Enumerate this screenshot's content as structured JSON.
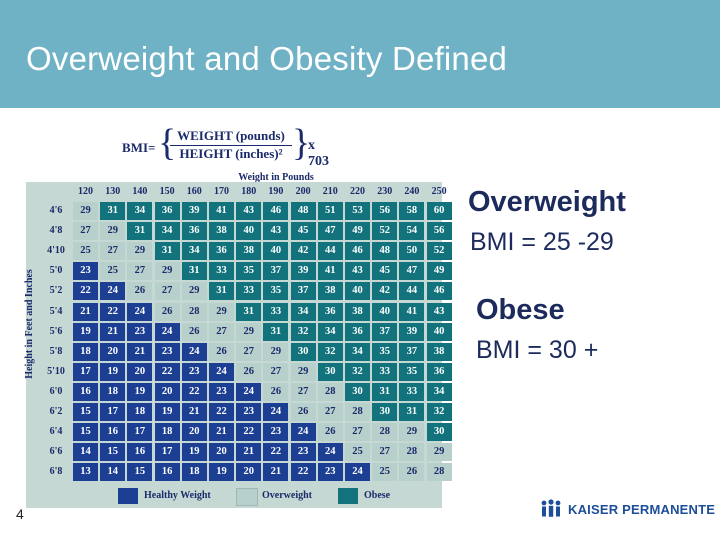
{
  "slide": {
    "title": "Overweight and Obesity Defined",
    "page_number": "4"
  },
  "figure": {
    "formula": {
      "label": "BMI=",
      "numerator": "WEIGHT (pounds)",
      "denominator": "HEIGHT (inches)²",
      "multiplier": "x 703"
    },
    "weight_axis_title": "Weight in Pounds",
    "height_axis_title": "Height in Feet and Inches",
    "weights": [
      "120",
      "130",
      "140",
      "150",
      "160",
      "170",
      "180",
      "190",
      "200",
      "210",
      "220",
      "230",
      "240",
      "250"
    ],
    "heights": [
      "4'6",
      "4'8",
      "4'10",
      "5'0",
      "5'2",
      "5'4",
      "5'6",
      "5'8",
      "5'10",
      "6'0",
      "6'2",
      "6'4",
      "6'6",
      "6'8"
    ],
    "rows": [
      [
        29,
        31,
        34,
        36,
        39,
        41,
        43,
        46,
        48,
        51,
        53,
        56,
        58,
        60
      ],
      [
        27,
        29,
        31,
        34,
        36,
        38,
        40,
        43,
        45,
        47,
        49,
        52,
        54,
        56
      ],
      [
        25,
        27,
        29,
        31,
        34,
        36,
        38,
        40,
        42,
        44,
        46,
        48,
        50,
        52
      ],
      [
        23,
        25,
        27,
        29,
        31,
        33,
        35,
        37,
        39,
        41,
        43,
        45,
        47,
        49
      ],
      [
        22,
        24,
        26,
        27,
        29,
        31,
        33,
        35,
        37,
        38,
        40,
        42,
        44,
        46
      ],
      [
        21,
        22,
        24,
        26,
        28,
        29,
        31,
        33,
        34,
        36,
        38,
        40,
        41,
        43
      ],
      [
        19,
        21,
        23,
        24,
        26,
        27,
        29,
        31,
        32,
        34,
        36,
        37,
        39,
        40
      ],
      [
        18,
        20,
        21,
        23,
        24,
        26,
        27,
        29,
        30,
        32,
        34,
        35,
        37,
        38
      ],
      [
        17,
        19,
        20,
        22,
        23,
        24,
        26,
        27,
        29,
        30,
        32,
        33,
        35,
        36
      ],
      [
        16,
        18,
        19,
        20,
        22,
        23,
        24,
        26,
        27,
        28,
        30,
        31,
        33,
        34
      ],
      [
        15,
        17,
        18,
        19,
        21,
        22,
        23,
        24,
        26,
        27,
        28,
        30,
        31,
        32
      ],
      [
        15,
        16,
        17,
        18,
        20,
        21,
        22,
        23,
        24,
        26,
        27,
        28,
        29,
        30
      ],
      [
        14,
        15,
        16,
        17,
        19,
        20,
        21,
        22,
        23,
        24,
        25,
        27,
        28,
        29
      ],
      [
        13,
        14,
        15,
        16,
        18,
        19,
        20,
        21,
        22,
        23,
        24,
        25,
        26,
        28
      ]
    ],
    "legend": {
      "healthy": "Healthy Weight",
      "overweight": "Overweight",
      "obese": "Obese"
    },
    "colors": {
      "healthy": "#1c3f94",
      "overweight": "#b8d0cb",
      "obese": "#12737d"
    },
    "thresholds": {
      "overweight_min": 25,
      "obese_min": 30
    }
  },
  "definitions": {
    "overweight_title": "Overweight",
    "overweight_value": "BMI = 25 -29",
    "obese_title": "Obese",
    "obese_value": "BMI = 30 +"
  },
  "branding": {
    "logo_text": "KAISER PERMANENTE",
    "logo_icon": "kaiser-people-icon"
  }
}
